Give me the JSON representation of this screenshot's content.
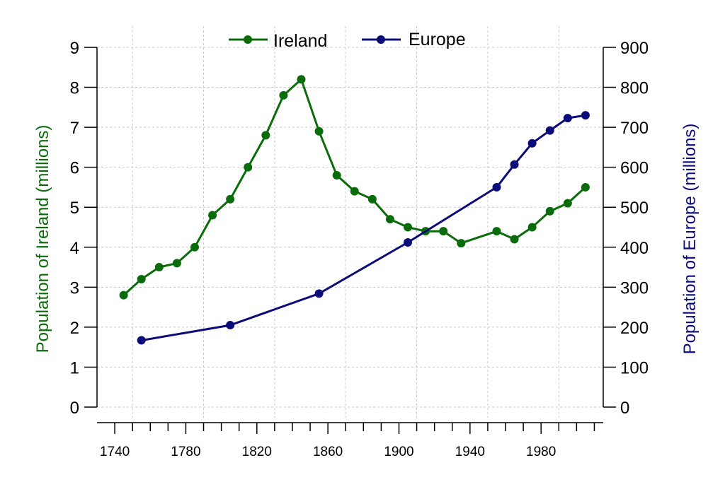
{
  "chart_data": {
    "type": "line",
    "title": "",
    "x_ticks": [
      1740,
      1780,
      1820,
      1860,
      1900,
      1940,
      1980
    ],
    "x_range": [
      1730,
      2015
    ],
    "y_left": {
      "label": "Population of Ireland (millions)",
      "range": [
        0,
        9
      ],
      "ticks": [
        "0",
        "1",
        "2",
        "3",
        "4",
        "5",
        "6",
        "7",
        "8",
        "9"
      ]
    },
    "y_right": {
      "label": "Population of Europe (millions)",
      "range": [
        0,
        900
      ],
      "ticks": [
        "0",
        "100",
        "200",
        "300",
        "400",
        "500",
        "600",
        "700",
        "800",
        "900"
      ]
    },
    "grid": true,
    "legend_position": "top-center",
    "series": [
      {
        "name": "Ireland",
        "axis": "left",
        "color": "#0a6b0a",
        "x": [
          1745,
          1755,
          1765,
          1775,
          1785,
          1795,
          1805,
          1815,
          1825,
          1835,
          1845,
          1855,
          1865,
          1875,
          1885,
          1895,
          1905,
          1915,
          1925,
          1935,
          1955,
          1965,
          1975,
          1985,
          1995,
          2005
        ],
        "y": [
          2.8,
          3.2,
          3.5,
          3.6,
          4.0,
          4.8,
          5.2,
          6.0,
          6.8,
          7.8,
          8.2,
          6.9,
          5.8,
          5.4,
          5.2,
          4.7,
          4.5,
          4.4,
          4.4,
          4.1,
          4.4,
          4.2,
          4.5,
          4.9,
          5.1,
          5.5
        ]
      },
      {
        "name": "Europe",
        "axis": "right",
        "color": "#0b0b7a",
        "x": [
          1755,
          1805,
          1855,
          1905,
          1955,
          1965,
          1975,
          1985,
          1995,
          2005
        ],
        "y": [
          167,
          205,
          284,
          412,
          550,
          607,
          660,
          692,
          723,
          730
        ]
      }
    ]
  }
}
